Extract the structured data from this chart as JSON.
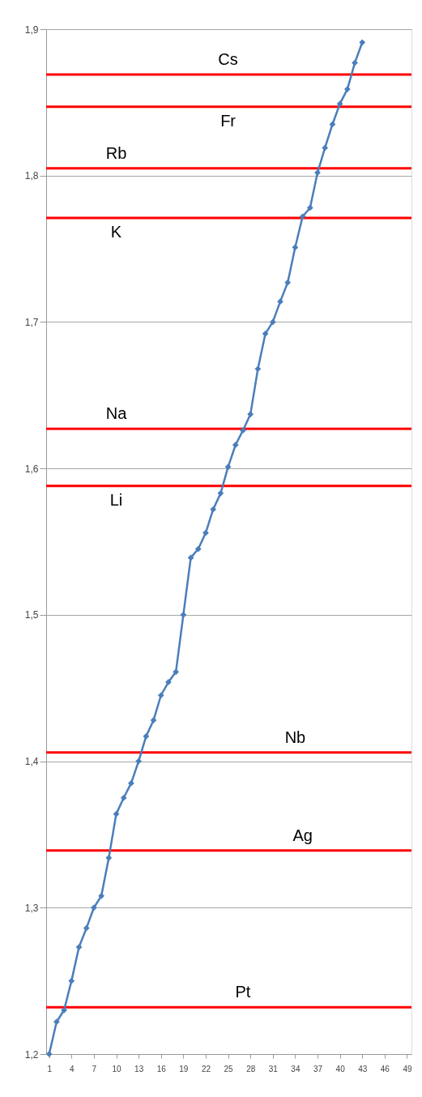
{
  "chart_data": {
    "type": "line",
    "x": [
      1,
      2,
      3,
      4,
      5,
      6,
      7,
      8,
      9,
      10,
      11,
      12,
      13,
      14,
      15,
      16,
      17,
      18,
      19,
      20,
      21,
      22,
      23,
      24,
      25,
      26,
      27,
      28,
      29,
      30,
      31,
      32,
      33,
      34,
      35,
      36,
      37,
      38,
      39,
      40,
      41,
      42,
      43
    ],
    "series": [
      {
        "color": "#4a7ebb",
        "values": [
          1.2,
          1.222,
          1.23,
          1.25,
          1.273,
          1.286,
          1.3,
          1.308,
          1.334,
          1.364,
          1.375,
          1.385,
          1.4,
          1.417,
          1.428,
          1.445,
          1.454,
          1.461,
          1.5,
          1.539,
          1.545,
          1.556,
          1.572,
          1.583,
          1.601,
          1.616,
          1.626,
          1.637,
          1.668,
          1.692,
          1.7,
          1.714,
          1.727,
          1.751,
          1.772,
          1.778,
          1.802,
          1.819,
          1.835,
          1.849,
          1.859,
          1.877,
          1.891
        ]
      }
    ],
    "xlim": [
      0.6,
      49.6
    ],
    "xticks": [
      1,
      4,
      7,
      10,
      13,
      16,
      19,
      22,
      25,
      28,
      31,
      34,
      37,
      40,
      43,
      46,
      49
    ],
    "ylim": [
      1.2,
      1.9
    ],
    "yticks": [
      {
        "value": 1.2,
        "label": "1,2"
      },
      {
        "value": 1.3,
        "label": "1,3"
      },
      {
        "value": 1.4,
        "label": "1,4"
      },
      {
        "value": 1.5,
        "label": "1,5"
      },
      {
        "value": 1.6,
        "label": "1,6"
      },
      {
        "value": 1.7,
        "label": "1,7"
      },
      {
        "value": 1.8,
        "label": "1,8"
      },
      {
        "value": 1.9,
        "label": "1,9"
      }
    ],
    "ref_lines": [
      {
        "axis": "y",
        "value": 1.869,
        "label": "Cs",
        "color": "#ff0000"
      },
      {
        "axis": "y",
        "value": 1.847,
        "label": "Fr",
        "color": "#ff0000"
      },
      {
        "axis": "y",
        "value": 1.805,
        "label": "Rb",
        "color": "#ff0000"
      },
      {
        "axis": "y",
        "value": 1.771,
        "label": "K",
        "color": "#ff0000"
      },
      {
        "axis": "y",
        "value": 1.627,
        "label": "Na",
        "color": "#ff0000"
      },
      {
        "axis": "y",
        "value": 1.588,
        "label": "Li",
        "color": "#ff0000"
      },
      {
        "axis": "y",
        "value": 1.406,
        "label": "Nb",
        "color": "#ff0000"
      },
      {
        "axis": "y",
        "value": 1.339,
        "label": "Ag",
        "color": "#ff0000"
      },
      {
        "axis": "y",
        "value": 1.232,
        "label": "Pt",
        "color": "#ff0000"
      }
    ],
    "grid": "y",
    "legend": false,
    "marker": "diamond",
    "line_style": "solid"
  }
}
